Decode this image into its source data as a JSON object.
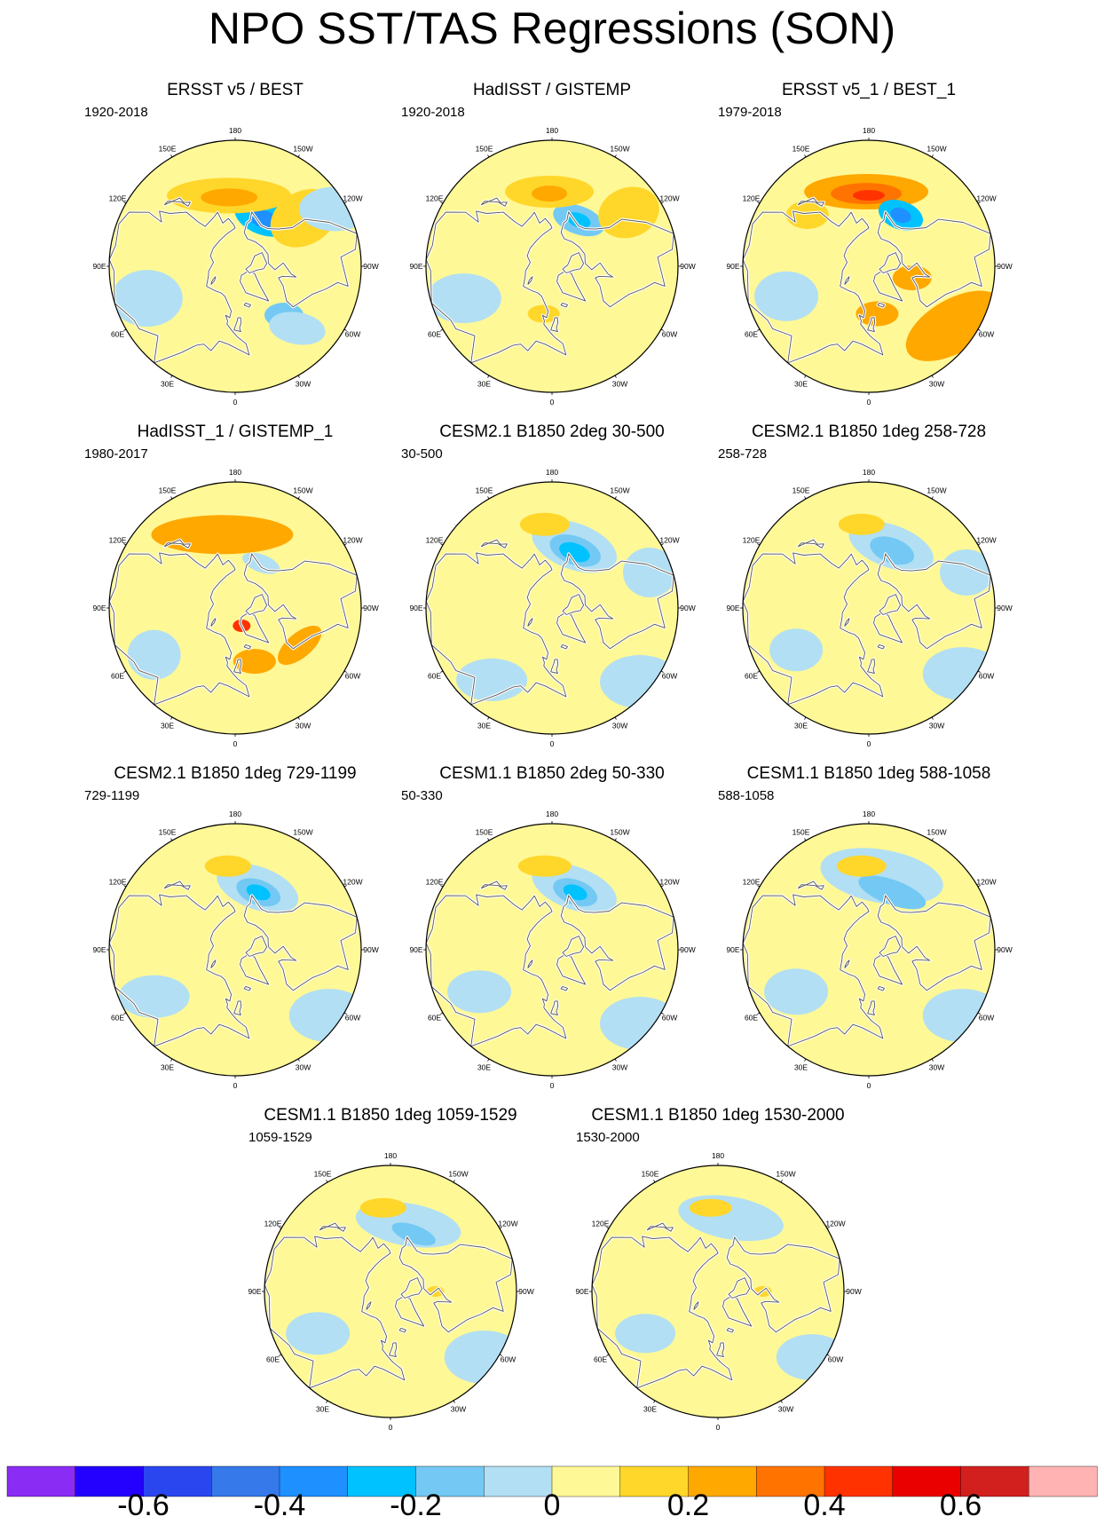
{
  "title": "NPO SST/TAS Regressions (SON)",
  "panels": [
    {
      "title": "ERSST v5 / BEST",
      "period": "1920-2018",
      "blobs": [
        {
          "lat": 55,
          "lon": -150,
          "rx": 34,
          "ry": 20,
          "rot": 20,
          "level": -0.3
        },
        {
          "lat": 56,
          "lon": -148,
          "rx": 18,
          "ry": 10,
          "rot": 20,
          "level": -0.4
        },
        {
          "lat": 47,
          "lon": 175,
          "rx": 70,
          "ry": 20,
          "rot": 0,
          "level": 0.15
        },
        {
          "lat": 48,
          "lon": 175,
          "rx": 32,
          "ry": 10,
          "rot": 0,
          "level": 0.25
        },
        {
          "lat": 40,
          "lon": -125,
          "rx": 40,
          "ry": 30,
          "rot": -30,
          "level": 0.15
        },
        {
          "lat": 48,
          "lon": -45,
          "rx": 22,
          "ry": 14,
          "rot": 0,
          "level": -0.2
        },
        {
          "lat": 38,
          "lon": -45,
          "rx": 32,
          "ry": 18,
          "rot": 10,
          "level": -0.1
        },
        {
          "lat": 35,
          "lon": 70,
          "rx": 40,
          "ry": 32,
          "rot": 0,
          "level": -0.1
        },
        {
          "lat": 25,
          "lon": -120,
          "rx": 40,
          "ry": 25,
          "rot": 0,
          "level": -0.1
        }
      ]
    },
    {
      "title": "HadISST / GISTEMP",
      "period": "1920-2018",
      "blobs": [
        {
          "lat": 57,
          "lon": -150,
          "rx": 30,
          "ry": 16,
          "rot": 20,
          "level": -0.2
        },
        {
          "lat": 57,
          "lon": -150,
          "rx": 14,
          "ry": 8,
          "rot": 20,
          "level": -0.3
        },
        {
          "lat": 45,
          "lon": 178,
          "rx": 50,
          "ry": 18,
          "rot": 0,
          "level": 0.15
        },
        {
          "lat": 46,
          "lon": 178,
          "rx": 20,
          "ry": 9,
          "rot": 0,
          "level": 0.25
        },
        {
          "lat": 35,
          "lon": -125,
          "rx": 35,
          "ry": 28,
          "rot": -20,
          "level": 0.15
        },
        {
          "lat": 35,
          "lon": 70,
          "rx": 42,
          "ry": 28,
          "rot": 0,
          "level": -0.1
        },
        {
          "lat": 60,
          "lon": 10,
          "rx": 18,
          "ry": 10,
          "rot": 0,
          "level": 0.15
        }
      ]
    },
    {
      "title": "ERSST v5_1 / BEST_1",
      "period": "1979-2018",
      "blobs": [
        {
          "lat": 45,
          "lon": 178,
          "rx": 70,
          "ry": 20,
          "rot": 0,
          "level": 0.2
        },
        {
          "lat": 46,
          "lon": 178,
          "rx": 40,
          "ry": 12,
          "rot": 0,
          "level": 0.3
        },
        {
          "lat": 47,
          "lon": 180,
          "rx": 18,
          "ry": 6,
          "rot": 0,
          "level": 0.4
        },
        {
          "lat": 53,
          "lon": -148,
          "rx": 26,
          "ry": 16,
          "rot": 20,
          "level": -0.3
        },
        {
          "lat": 53,
          "lon": -148,
          "rx": 12,
          "ry": 8,
          "rot": 20,
          "level": -0.4
        },
        {
          "lat": 30,
          "lon": -55,
          "rx": 60,
          "ry": 30,
          "rot": -30,
          "level": 0.2
        },
        {
          "lat": 62,
          "lon": -75,
          "rx": 22,
          "ry": 14,
          "rot": 0,
          "level": 0.2
        },
        {
          "lat": 60,
          "lon": -10,
          "rx": 24,
          "ry": 14,
          "rot": 0,
          "level": 0.2
        },
        {
          "lat": 38,
          "lon": 70,
          "rx": 36,
          "ry": 28,
          "rot": 0,
          "level": -0.1
        },
        {
          "lat": 42,
          "lon": 130,
          "rx": 24,
          "ry": 16,
          "rot": 0,
          "level": 0.15
        }
      ]
    },
    {
      "title": "HadISST_1 / GISTEMP_1",
      "period": "1980-2017",
      "blobs": [
        {
          "lat": 45,
          "lon": 170,
          "rx": 80,
          "ry": 22,
          "rot": 0,
          "level": 0.2
        },
        {
          "lat": 47,
          "lon": 175,
          "rx": 44,
          "ry": 12,
          "rot": 0,
          "level": 0.25
        },
        {
          "lat": 58,
          "lon": -150,
          "rx": 22,
          "ry": 10,
          "rot": 20,
          "level": -0.1
        },
        {
          "lat": 78,
          "lon": -20,
          "rx": 10,
          "ry": 7,
          "rot": 0,
          "level": 0.4
        },
        {
          "lat": 45,
          "lon": -60,
          "rx": 30,
          "ry": 14,
          "rot": -40,
          "level": 0.2
        },
        {
          "lat": 55,
          "lon": -20,
          "rx": 24,
          "ry": 14,
          "rot": 0,
          "level": 0.2
        },
        {
          "lat": 35,
          "lon": 60,
          "rx": 30,
          "ry": 28,
          "rot": 0,
          "level": -0.1
        }
      ]
    },
    {
      "title": "CESM2.1 B1850 2deg 30-500",
      "period": "30-500",
      "blobs": [
        {
          "lat": 50,
          "lon": -160,
          "rx": 50,
          "ry": 26,
          "rot": 20,
          "level": -0.1
        },
        {
          "lat": 52,
          "lon": -158,
          "rx": 30,
          "ry": 16,
          "rot": 20,
          "level": -0.2
        },
        {
          "lat": 53,
          "lon": -158,
          "rx": 18,
          "ry": 10,
          "rot": 20,
          "level": -0.3
        },
        {
          "lat": 40,
          "lon": 175,
          "rx": 28,
          "ry": 13,
          "rot": 0,
          "level": 0.15
        },
        {
          "lat": 25,
          "lon": -50,
          "rx": 45,
          "ry": 30,
          "rot": 0,
          "level": -0.1
        },
        {
          "lat": 30,
          "lon": -110,
          "rx": 30,
          "ry": 28,
          "rot": 0,
          "level": -0.1
        },
        {
          "lat": 35,
          "lon": 40,
          "rx": 40,
          "ry": 24,
          "rot": 0,
          "level": -0.1
        }
      ]
    },
    {
      "title": "CESM2.1 B1850 1deg 258-728",
      "period": "258-728",
      "blobs": [
        {
          "lat": 50,
          "lon": -160,
          "rx": 50,
          "ry": 24,
          "rot": 20,
          "level": -0.1
        },
        {
          "lat": 52,
          "lon": -158,
          "rx": 26,
          "ry": 14,
          "rot": 20,
          "level": -0.2
        },
        {
          "lat": 40,
          "lon": 175,
          "rx": 26,
          "ry": 12,
          "rot": 0,
          "level": 0.15
        },
        {
          "lat": 25,
          "lon": -55,
          "rx": 45,
          "ry": 30,
          "rot": 0,
          "level": -0.1
        },
        {
          "lat": 30,
          "lon": -110,
          "rx": 30,
          "ry": 26,
          "rot": 0,
          "level": -0.1
        },
        {
          "lat": 40,
          "lon": 60,
          "rx": 30,
          "ry": 24,
          "rot": 0,
          "level": -0.1
        }
      ]
    },
    {
      "title": "CESM2.1 B1850 1deg 729-1199",
      "period": "729-1199",
      "blobs": [
        {
          "lat": 50,
          "lon": -160,
          "rx": 48,
          "ry": 24,
          "rot": 20,
          "level": -0.1
        },
        {
          "lat": 52,
          "lon": -158,
          "rx": 26,
          "ry": 14,
          "rot": 20,
          "level": -0.2
        },
        {
          "lat": 52,
          "lon": -158,
          "rx": 14,
          "ry": 8,
          "rot": 20,
          "level": -0.3
        },
        {
          "lat": 40,
          "lon": 175,
          "rx": 26,
          "ry": 12,
          "rot": 0,
          "level": 0.15
        },
        {
          "lat": 25,
          "lon": -55,
          "rx": 45,
          "ry": 30,
          "rot": 0,
          "level": -0.1
        },
        {
          "lat": 35,
          "lon": 60,
          "rx": 40,
          "ry": 24,
          "rot": 0,
          "level": -0.1
        }
      ]
    },
    {
      "title": "CESM1.1 B1850 2deg 50-330",
      "period": "50-330",
      "blobs": [
        {
          "lat": 50,
          "lon": -160,
          "rx": 50,
          "ry": 24,
          "rot": 20,
          "level": -0.1
        },
        {
          "lat": 52,
          "lon": -158,
          "rx": 26,
          "ry": 14,
          "rot": 20,
          "level": -0.2
        },
        {
          "lat": 52,
          "lon": -158,
          "rx": 14,
          "ry": 8,
          "rot": 20,
          "level": -0.3
        },
        {
          "lat": 40,
          "lon": 175,
          "rx": 30,
          "ry": 12,
          "rot": 0,
          "level": 0.15
        },
        {
          "lat": 25,
          "lon": -50,
          "rx": 45,
          "ry": 30,
          "rot": 0,
          "level": -0.1
        },
        {
          "lat": 40,
          "lon": 60,
          "rx": 36,
          "ry": 24,
          "rot": 0,
          "level": -0.1
        }
      ]
    },
    {
      "title": "CESM1.1 B1850 1deg 588-1058",
      "period": "588-1058",
      "blobs": [
        {
          "lat": 45,
          "lon": -170,
          "rx": 70,
          "ry": 30,
          "rot": 10,
          "level": -0.1
        },
        {
          "lat": 52,
          "lon": -158,
          "rx": 40,
          "ry": 14,
          "rot": 20,
          "level": -0.2
        },
        {
          "lat": 40,
          "lon": 175,
          "rx": 28,
          "ry": 12,
          "rot": 0,
          "level": 0.15
        },
        {
          "lat": 25,
          "lon": -55,
          "rx": 45,
          "ry": 30,
          "rot": 0,
          "level": -0.1
        },
        {
          "lat": 40,
          "lon": 60,
          "rx": 36,
          "ry": 26,
          "rot": 0,
          "level": -0.1
        }
      ]
    },
    {
      "title": "CESM1.1 B1850 1deg 1059-1529",
      "period": "1059-1529",
      "blobs": [
        {
          "lat": 48,
          "lon": -165,
          "rx": 60,
          "ry": 24,
          "rot": 10,
          "level": -0.1
        },
        {
          "lat": 52,
          "lon": -158,
          "rx": 26,
          "ry": 10,
          "rot": 20,
          "level": -0.2
        },
        {
          "lat": 40,
          "lon": 175,
          "rx": 26,
          "ry": 11,
          "rot": 0,
          "level": 0.15
        },
        {
          "lat": 25,
          "lon": -55,
          "rx": 45,
          "ry": 30,
          "rot": 0,
          "level": -0.1
        },
        {
          "lat": 40,
          "lon": 60,
          "rx": 36,
          "ry": 24,
          "rot": 0,
          "level": -0.1
        },
        {
          "lat": 62,
          "lon": -90,
          "rx": 10,
          "ry": 6,
          "rot": 0,
          "level": 0.15
        }
      ]
    },
    {
      "title": "CESM1.1 B1850 1deg 1530-2000",
      "period": "1530-2000",
      "blobs": [
        {
          "lat": 45,
          "lon": -170,
          "rx": 60,
          "ry": 24,
          "rot": 10,
          "level": -0.1
        },
        {
          "lat": 40,
          "lon": 175,
          "rx": 24,
          "ry": 10,
          "rot": 0,
          "level": 0.15
        },
        {
          "lat": 25,
          "lon": -55,
          "rx": 40,
          "ry": 26,
          "rot": 0,
          "level": -0.1
        },
        {
          "lat": 40,
          "lon": 60,
          "rx": 34,
          "ry": 22,
          "rot": 0,
          "level": -0.1
        },
        {
          "lat": 62,
          "lon": -90,
          "rx": 10,
          "ry": 6,
          "rot": 0,
          "level": 0.15
        }
      ]
    }
  ],
  "map": {
    "projection": "north-polar-stereographic",
    "lon_labels": [
      "180",
      "150E",
      "120E",
      "90E",
      "60E",
      "30E",
      "0",
      "30W",
      "60W",
      "90W",
      "120W",
      "150W"
    ],
    "lon_values": [
      180,
      150,
      120,
      90,
      60,
      30,
      0,
      -30,
      -60,
      -90,
      -120,
      -150
    ],
    "background_level": 0.05
  },
  "colorbar": {
    "levels": [
      -0.7,
      -0.6,
      -0.5,
      -0.4,
      -0.3,
      -0.2,
      -0.1,
      0,
      0.1,
      0.2,
      0.3,
      0.4,
      0.5,
      0.6,
      0.7
    ],
    "colors": [
      "#8a2cf4",
      "#2400ff",
      "#2a46ef",
      "#3679eb",
      "#1e90ff",
      "#00c2ff",
      "#73c9f4",
      "#b2dff3",
      "#fff897",
      "#ffd62a",
      "#ffa800",
      "#ff7300",
      "#ff3200",
      "#eb0000",
      "#d2201f",
      "#ffb3b3"
    ],
    "tick_labels": [
      "-0.6",
      "-0.4",
      "-0.2",
      "0",
      "0.2",
      "0.4",
      "0.6"
    ],
    "tick_values": [
      -0.6,
      -0.4,
      -0.2,
      0,
      0.2,
      0.4,
      0.6
    ]
  }
}
